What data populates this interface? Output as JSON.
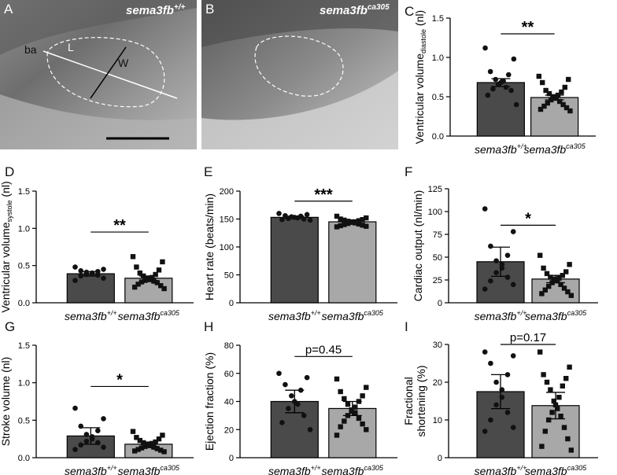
{
  "panels_micro": [
    {
      "id": "A",
      "genotype_base": "sema3fb",
      "genotype_sup": "+/+",
      "labels": {
        "ba": "ba",
        "L": "L",
        "W": "W"
      }
    },
    {
      "id": "B",
      "genotype_base": "sema3fb",
      "genotype_sup": "ca305"
    }
  ],
  "categories": [
    {
      "base": "sema3fb",
      "sup": "+/+"
    },
    {
      "base": "sema3fb",
      "sup": "ca305"
    }
  ],
  "colors": {
    "wt_bar": "#4a4a4a",
    "mut_bar": "#a8a8a8",
    "point": "#111111"
  },
  "chart_data": [
    {
      "panel": "C",
      "type": "bar",
      "ylabel": "Ventricular volume",
      "ylabel_sub": "diastole",
      "ylabel_unit": " (nl)",
      "ylim": [
        0,
        1.5
      ],
      "ticks": [
        "0.0",
        "0.5",
        "1.0",
        "1.5"
      ],
      "tick_values": [
        0,
        0.5,
        1.0,
        1.5
      ],
      "means": [
        0.68,
        0.49
      ],
      "errors": [
        0.05,
        0.03
      ],
      "points": [
        [
          1.12,
          0.98,
          0.82,
          0.78,
          0.72,
          0.7,
          0.68,
          0.66,
          0.62,
          0.6,
          0.58,
          0.52,
          0.4
        ],
        [
          0.76,
          0.72,
          0.68,
          0.62,
          0.58,
          0.56,
          0.54,
          0.52,
          0.5,
          0.5,
          0.48,
          0.46,
          0.44,
          0.42,
          0.4,
          0.38,
          0.36,
          0.34,
          0.32
        ]
      ],
      "sig": "**"
    },
    {
      "panel": "D",
      "type": "bar",
      "ylabel": "Ventricular volume",
      "ylabel_sub": "systole",
      "ylabel_unit": " (nl)",
      "ylim": [
        0,
        1.5
      ],
      "ticks": [
        "0.0",
        "0.5",
        "1.0",
        "1.5"
      ],
      "tick_values": [
        0,
        0.5,
        1.0,
        1.5
      ],
      "means": [
        0.39,
        0.33
      ],
      "errors": [
        0.03,
        0.03
      ],
      "points": [
        [
          0.48,
          0.45,
          0.43,
          0.42,
          0.41,
          0.4,
          0.39,
          0.38,
          0.37,
          0.36,
          0.33,
          0.3
        ],
        [
          0.62,
          0.55,
          0.48,
          0.44,
          0.4,
          0.38,
          0.36,
          0.34,
          0.33,
          0.32,
          0.31,
          0.3,
          0.29,
          0.28,
          0.27,
          0.25,
          0.23,
          0.21,
          0.19
        ]
      ],
      "sig": "**"
    },
    {
      "panel": "E",
      "type": "bar",
      "ylabel": "Heart rate (beats/min)",
      "ylabel_sub": "",
      "ylabel_unit": "",
      "ylim": [
        0,
        200
      ],
      "ticks": [
        "0",
        "50",
        "100",
        "150",
        "200"
      ],
      "tick_values": [
        0,
        50,
        100,
        150,
        200
      ],
      "means": [
        153,
        145
      ],
      "errors": [
        2,
        2
      ],
      "points": [
        [
          160,
          158,
          156,
          155,
          154,
          153,
          152,
          151,
          150,
          149,
          148
        ],
        [
          155,
          152,
          150,
          149,
          148,
          147,
          146,
          145,
          145,
          144,
          143,
          142,
          141,
          140,
          139,
          138,
          137,
          136
        ]
      ],
      "sig": "***"
    },
    {
      "panel": "F",
      "type": "bar",
      "ylabel": "Cardiac output (nl/min)",
      "ylabel_sub": "",
      "ylabel_unit": "",
      "ylim": [
        0,
        125
      ],
      "ticks": [
        "0",
        "25",
        "50",
        "75",
        "100",
        "125"
      ],
      "tick_values": [
        0,
        25,
        50,
        75,
        100,
        125
      ],
      "means": [
        45,
        26
      ],
      "errors": [
        16,
        4
      ],
      "points": [
        [
          103,
          78,
          62,
          52,
          46,
          42,
          38,
          33,
          28,
          24,
          20,
          15
        ],
        [
          52,
          42,
          38,
          34,
          32,
          30,
          28,
          27,
          26,
          25,
          24,
          22,
          20,
          18,
          16,
          14,
          12,
          10,
          8
        ]
      ],
      "sig": "*"
    },
    {
      "panel": "G",
      "type": "bar",
      "ylabel": "Stroke volume (nl)",
      "ylabel_sub": "",
      "ylabel_unit": "",
      "ylim": [
        0,
        1.5
      ],
      "ticks": [
        "0.0",
        "0.5",
        "1.0",
        "1.5"
      ],
      "tick_values": [
        0,
        0.5,
        1.0,
        1.5
      ],
      "means": [
        0.29,
        0.18
      ],
      "errors": [
        0.11,
        0.03
      ],
      "points": [
        [
          0.66,
          0.52,
          0.42,
          0.36,
          0.31,
          0.28,
          0.25,
          0.22,
          0.2,
          0.17,
          0.14,
          0.11
        ],
        [
          0.35,
          0.3,
          0.27,
          0.25,
          0.23,
          0.21,
          0.2,
          0.19,
          0.18,
          0.17,
          0.16,
          0.15,
          0.14,
          0.13,
          0.12,
          0.11,
          0.1,
          0.09,
          0.08
        ]
      ],
      "sig": "*"
    },
    {
      "panel": "H",
      "type": "bar",
      "ylabel": "Ejection fraction (%)",
      "ylabel_sub": "",
      "ylabel_unit": "",
      "ylim": [
        0,
        80
      ],
      "ticks": [
        "0",
        "20",
        "40",
        "60",
        "80"
      ],
      "tick_values": [
        0,
        20,
        40,
        60,
        80
      ],
      "means": [
        40,
        35
      ],
      "errors": [
        8,
        5
      ],
      "points": [
        [
          60,
          57,
          52,
          48,
          44,
          40,
          38,
          35,
          30,
          25,
          20
        ],
        [
          56,
          50,
          47,
          44,
          42,
          40,
          38,
          36,
          34,
          33,
          32,
          30,
          28,
          26,
          24,
          22,
          20,
          16
        ]
      ],
      "sig": "p=0.45"
    },
    {
      "panel": "I",
      "type": "bar",
      "ylabel": "Fractional",
      "ylabel2": "shortening (%)",
      "ylabel_sub": "",
      "ylabel_unit": "",
      "ylim": [
        0,
        30
      ],
      "ticks": [
        "0",
        "10",
        "20",
        "30"
      ],
      "tick_values": [
        0,
        10,
        20,
        30
      ],
      "means": [
        17.5,
        13.8
      ],
      "errors": [
        4.5,
        3.5
      ],
      "points": [
        [
          28,
          27,
          25,
          22,
          20,
          18,
          16,
          14,
          12,
          10,
          8,
          7
        ],
        [
          28,
          24,
          22,
          21,
          20,
          19,
          18,
          16,
          15,
          14,
          13,
          12,
          11,
          10,
          8,
          7,
          5,
          3,
          2
        ]
      ],
      "sig": "p=0.17"
    }
  ]
}
